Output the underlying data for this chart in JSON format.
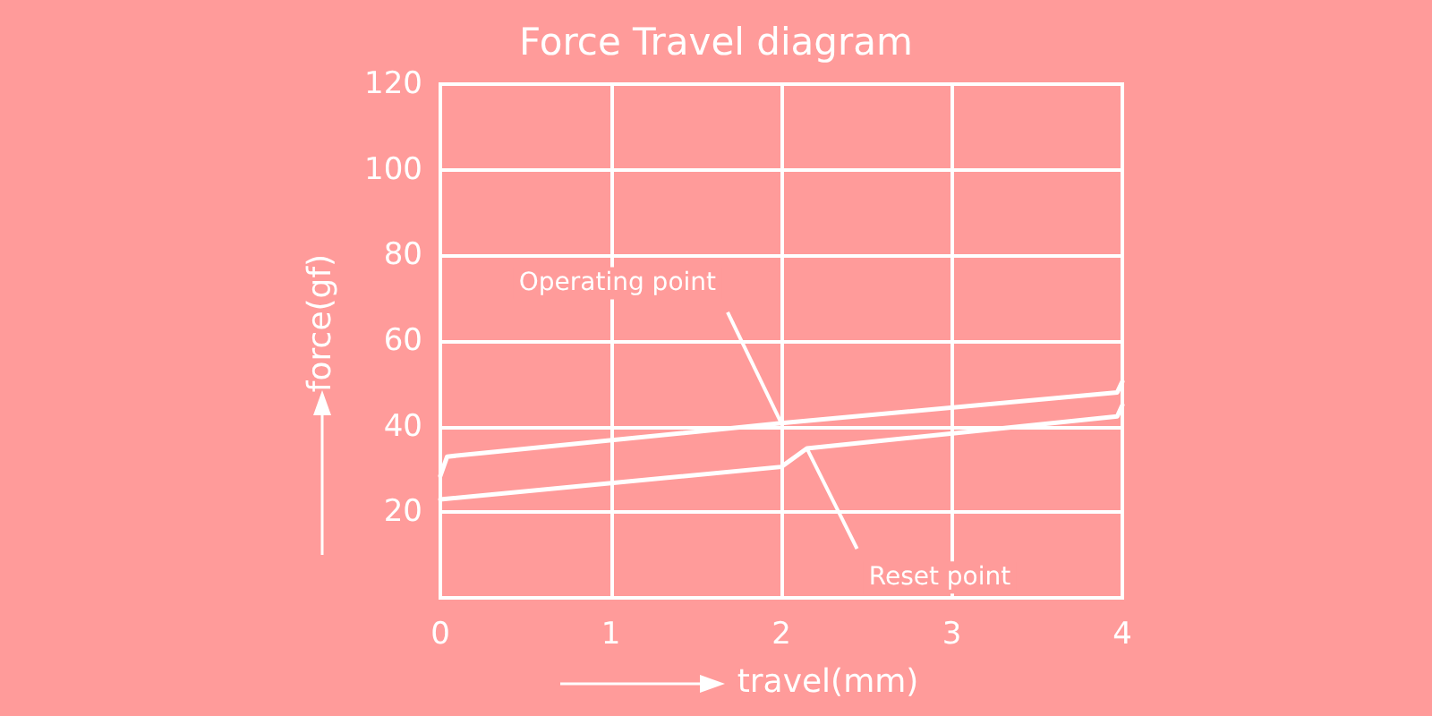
{
  "chart_data": {
    "type": "line",
    "title": "Force Travel diagram",
    "xlabel": "travel(mm)",
    "ylabel": "force(gf)",
    "series": [
      {
        "color": "#ffffff",
        "x": [
          0,
          0.04,
          2,
          3.97,
          4
        ],
        "values": [
          28.5,
          33,
          40.8,
          48,
          50.5
        ]
      },
      {
        "color": "#ffffff",
        "x": [
          0,
          2,
          2.15,
          3.97,
          4
        ],
        "values": [
          23,
          30.6,
          34.9,
          42.4,
          45
        ]
      }
    ],
    "xlim": [
      0,
      4
    ],
    "xticks": [
      0,
      1,
      2,
      3,
      4
    ],
    "ylim": [
      0,
      120
    ],
    "yticks": [
      20,
      40,
      60,
      80,
      100,
      120
    ],
    "annotations": [
      {
        "text": "Operating point",
        "x": 2,
        "y": 40.8
      },
      {
        "text": "Reset point",
        "x": 2.15,
        "y": 34.9
      }
    ],
    "grid": true,
    "marker": "none",
    "line_style": "solid"
  }
}
